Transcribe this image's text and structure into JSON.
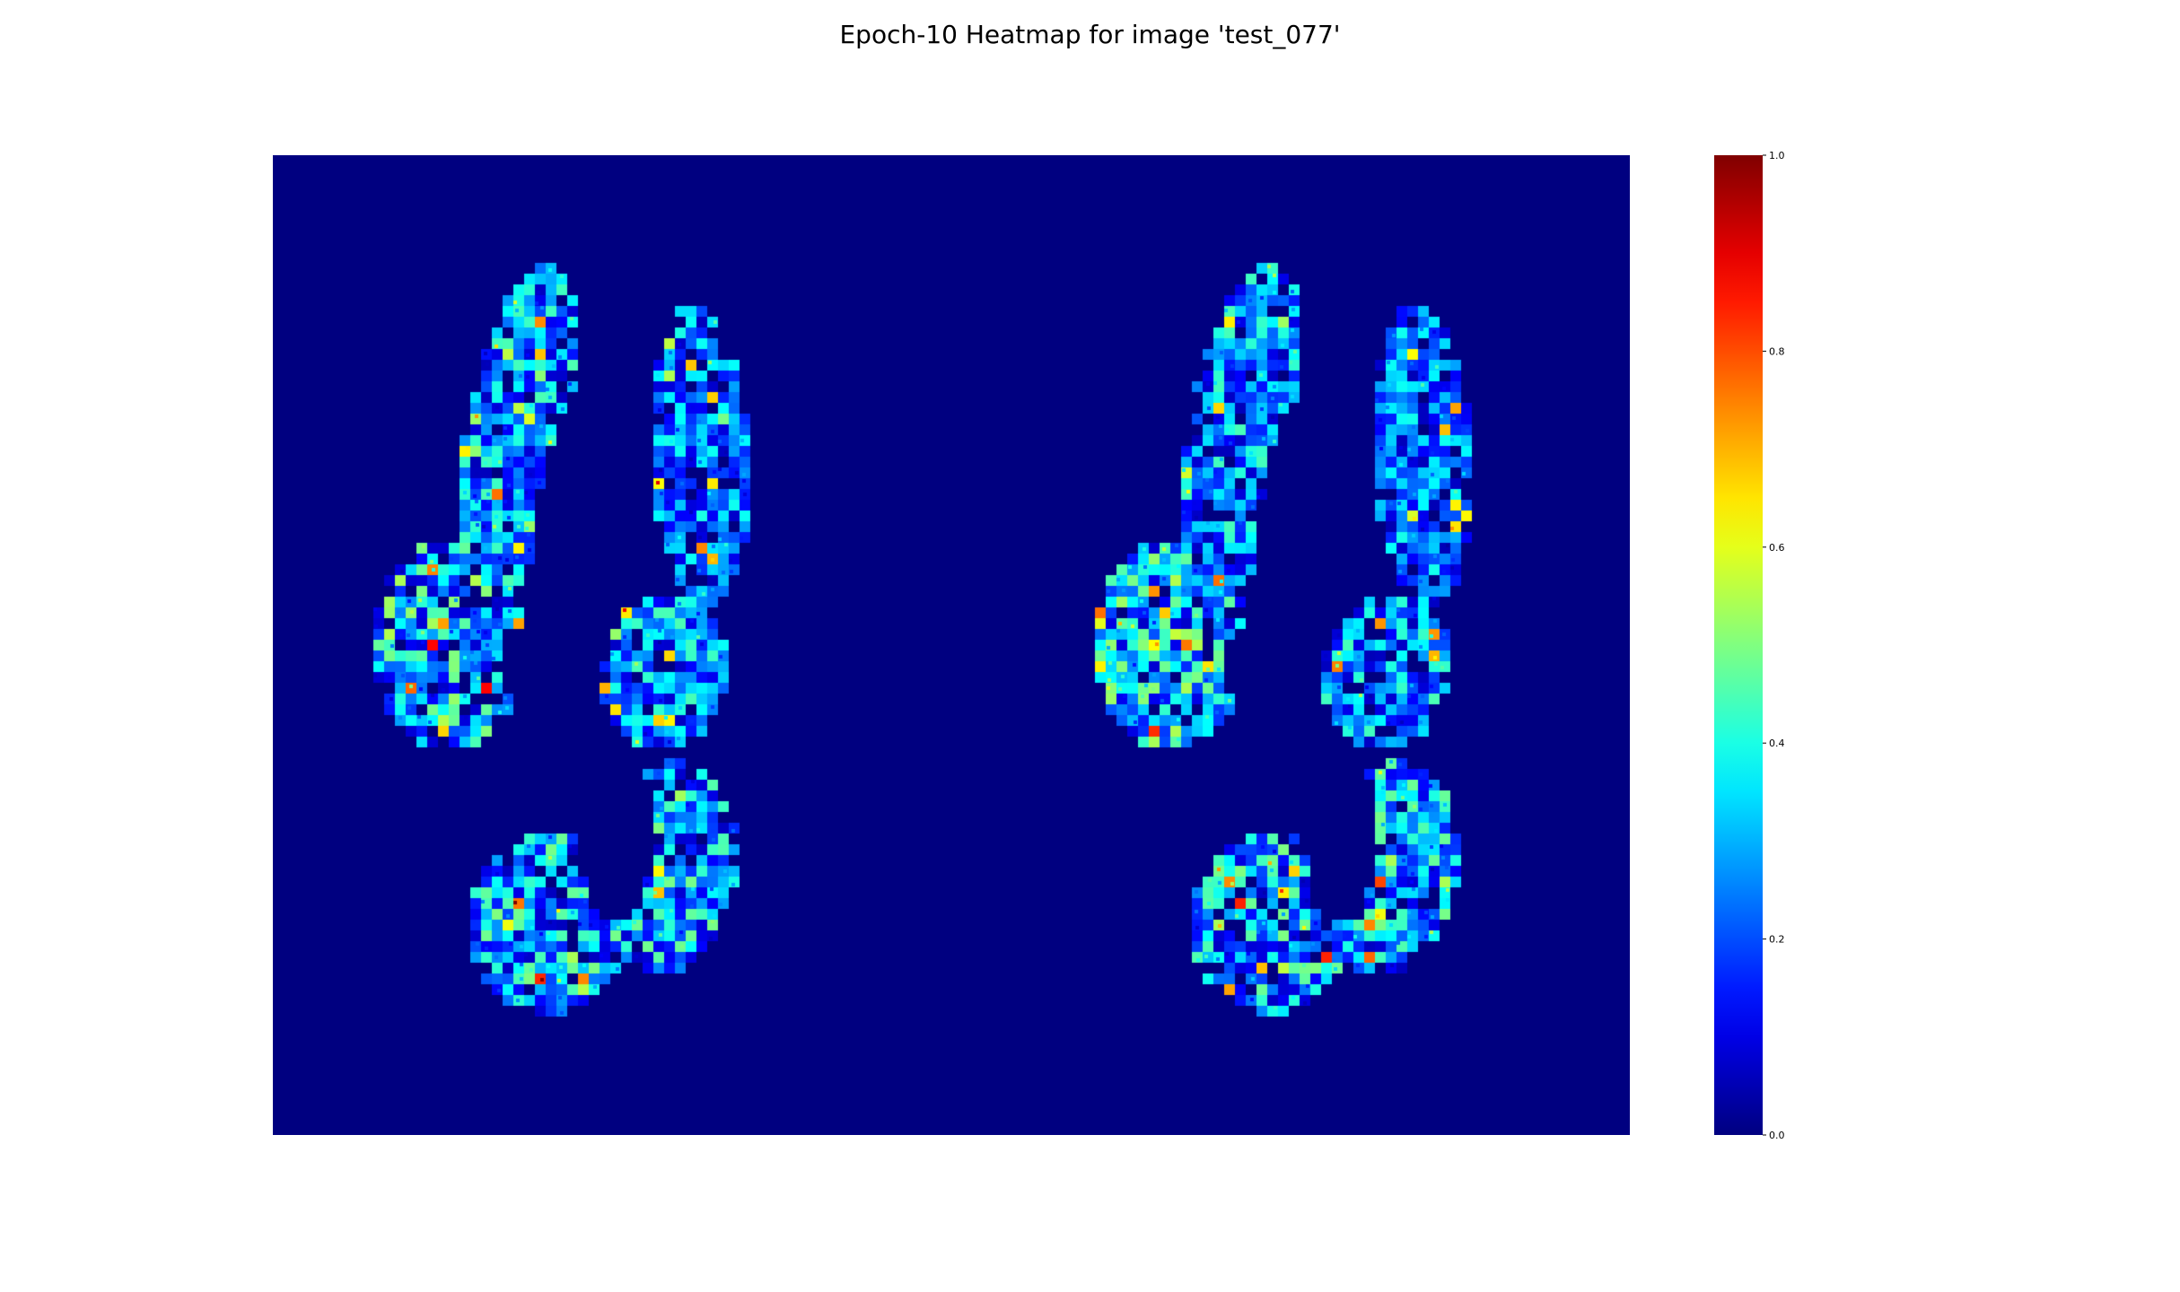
{
  "figure": {
    "title": "Epoch-10 Heatmap for image 'test_077'"
  },
  "chart_data": {
    "type": "heatmap",
    "title": "Epoch-10 Heatmap for image 'test_077'",
    "xlabel": "",
    "ylabel": "",
    "axes_visible": false,
    "colormap": "jet",
    "background_value": 0.0,
    "value_range": [
      0.0,
      1.0
    ],
    "colorbar": {
      "placement": "right",
      "ticks": [
        0.0,
        0.2,
        0.4,
        0.6,
        0.8,
        1.0
      ],
      "tick_labels": [
        "0.0",
        "0.2",
        "0.4",
        "0.6",
        "0.8",
        "1.0"
      ]
    }
  }
}
